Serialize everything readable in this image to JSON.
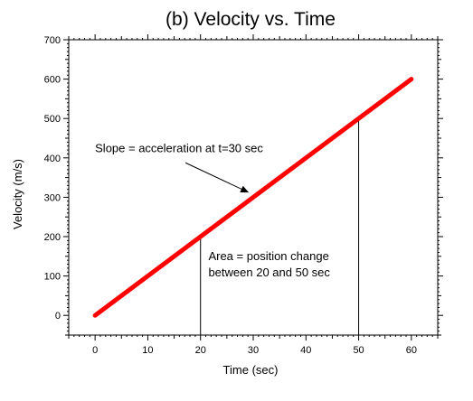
{
  "chart_data": {
    "type": "line",
    "title": "(b) Velocity vs. Time",
    "xlabel": "Time (sec)",
    "ylabel": "Velocity (m/s)",
    "xlim": [
      -5,
      65
    ],
    "ylim": [
      -50,
      700
    ],
    "xticks": [
      0,
      10,
      20,
      30,
      40,
      50,
      60
    ],
    "yticks": [
      0,
      100,
      200,
      300,
      400,
      500,
      600,
      700
    ],
    "grid": false,
    "series": [
      {
        "x": [
          0,
          60
        ],
        "y": [
          0,
          600
        ],
        "color": "#ff0000"
      }
    ],
    "vertical_lines": [
      {
        "x": 20,
        "y_top": 200
      },
      {
        "x": 50,
        "y_top": 500
      }
    ],
    "annotations": [
      {
        "lines": [
          "Slope = acceleration at t=30 sec"
        ],
        "text_x": 0,
        "text_y": 415,
        "arrow_to": {
          "x": 29,
          "y": 313
        }
      },
      {
        "lines": [
          "Area = position change",
          "between 20 and 50 sec"
        ],
        "text_x": 21.5,
        "text_y": 140
      }
    ]
  }
}
